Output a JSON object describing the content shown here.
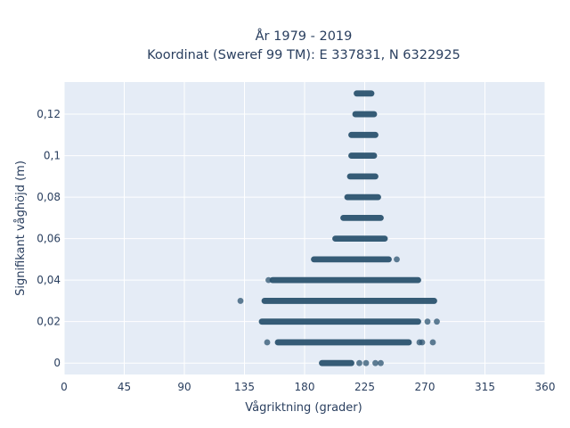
{
  "chart_data": {
    "type": "scatter",
    "title_line1": "År 1979 - 2019",
    "title_line2": "Koordinat (Sweref 99 TM): E 337831, N 6322925",
    "xlabel": "Vågriktning (grader)",
    "ylabel": "Signifikant våghöjd (m)",
    "xlim": [
      0,
      360
    ],
    "ylim": [
      -0.0055,
      0.1355
    ],
    "xticks": [
      0,
      45,
      90,
      135,
      180,
      225,
      270,
      315,
      360
    ],
    "xtick_labels": [
      "0",
      "45",
      "90",
      "135",
      "180",
      "225",
      "270",
      "315",
      "360"
    ],
    "yticks": [
      0,
      0.02,
      0.04,
      0.06,
      0.08,
      0.1,
      0.12
    ],
    "ytick_labels": [
      "0",
      "0,02",
      "0,04",
      "0,06",
      "0,08",
      "0,1",
      "0,12"
    ],
    "grid": true,
    "colors": {
      "plot_background": "#e5ecf6",
      "grid": "#ffffff",
      "marker": "#2c5470",
      "text": "#2a3f5f"
    },
    "rows": [
      {
        "y": 0.13,
        "x_range": [
          219,
          230
        ],
        "outliers": []
      },
      {
        "y": 0.12,
        "x_range": [
          218,
          232
        ],
        "outliers": []
      },
      {
        "y": 0.11,
        "x_range": [
          215,
          233
        ],
        "outliers": []
      },
      {
        "y": 0.1,
        "x_range": [
          215,
          232
        ],
        "outliers": []
      },
      {
        "y": 0.09,
        "x_range": [
          214,
          233
        ],
        "outliers": []
      },
      {
        "y": 0.08,
        "x_range": [
          212,
          235
        ],
        "outliers": []
      },
      {
        "y": 0.07,
        "x_range": [
          209,
          237
        ],
        "outliers": []
      },
      {
        "y": 0.06,
        "x_range": [
          203,
          240
        ],
        "outliers": []
      },
      {
        "y": 0.05,
        "x_range": [
          187,
          243
        ],
        "outliers": [
          249
        ]
      },
      {
        "y": 0.04,
        "x_range": [
          156,
          265
        ],
        "outliers": [
          153
        ]
      },
      {
        "y": 0.03,
        "x_range": [
          150,
          277
        ],
        "outliers": [
          132
        ]
      },
      {
        "y": 0.02,
        "x_range": [
          148,
          265
        ],
        "outliers": [
          272,
          279
        ]
      },
      {
        "y": 0.01,
        "x_range": [
          160,
          258
        ],
        "outliers": [
          152,
          266,
          268,
          276
        ]
      },
      {
        "y": 0.0,
        "x_range": [
          193,
          215
        ],
        "outliers": [
          221,
          226,
          233,
          237
        ]
      }
    ]
  }
}
